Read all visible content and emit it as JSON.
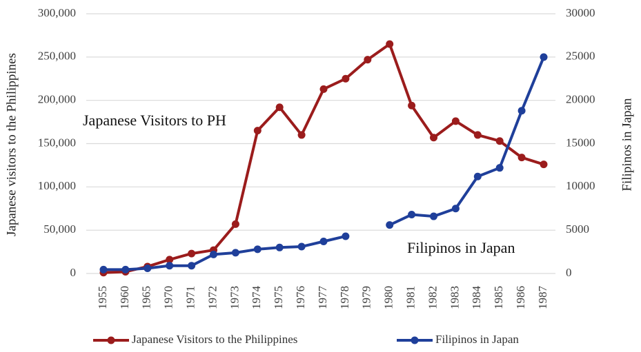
{
  "chart_data": {
    "type": "line",
    "annotations": [
      "Japanese Visitors to PH",
      "Filipinos in Japan"
    ],
    "y_label": "Japanese  visitors to the  Philippines",
    "y2_label": "Filipinos in Japan",
    "categories": [
      "1955",
      "1960",
      "1965",
      "1970",
      "1971",
      "1972",
      "1973",
      "1974",
      "1975",
      "1976",
      "1977",
      "1978",
      "1979",
      "1980",
      "1981",
      "1982",
      "1983",
      "1984",
      "1985",
      "1986",
      "1987"
    ],
    "series": [
      {
        "name": "Japanese Visitors to the Philippines",
        "color": "#9b1c1c",
        "axis": "y",
        "values": [
          1000,
          2000,
          8000,
          16000,
          23000,
          27000,
          57000,
          165000,
          192000,
          160000,
          213000,
          225000,
          247000,
          265000,
          194000,
          157000,
          176000,
          160000,
          153000,
          134000,
          126000
        ]
      },
      {
        "name": "Filipinos in Japan",
        "color": "#1f3f9a",
        "axis": "y2",
        "values": [
          450,
          450,
          600,
          900,
          900,
          2200,
          2400,
          2800,
          3000,
          3100,
          3700,
          4300,
          null,
          5600,
          6800,
          6600,
          7500,
          11200,
          12200,
          18800,
          25000
        ]
      }
    ],
    "ylim": [
      0,
      300000
    ],
    "yticks": [
      0,
      {
        "value": 50000,
        "label": "50,000"
      },
      {
        "value": 100000,
        "label": "100,000"
      },
      {
        "value": 150000,
        "label": "150,000"
      },
      {
        "value": 200000,
        "label": "200,000"
      },
      {
        "value": 250000,
        "label": "250,000"
      },
      {
        "value": 300000,
        "label": "300,000"
      }
    ],
    "y2lim": [
      0,
      30000
    ],
    "y2ticks": [
      0,
      5000,
      10000,
      15000,
      20000,
      25000,
      30000
    ],
    "grid": true,
    "legend": "bottom"
  }
}
